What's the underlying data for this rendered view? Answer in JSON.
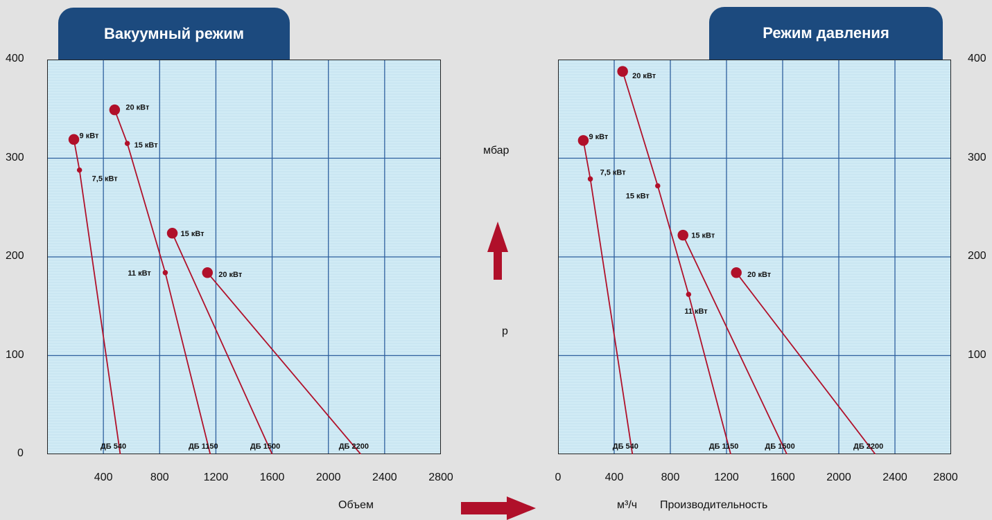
{
  "header": {
    "left_title": "Вакуумный режим",
    "right_title": "Режим давления"
  },
  "axis": {
    "y_unit": "мбар",
    "y_symbol": "p",
    "x_label_left": "Объем",
    "x_unit": "м³/ч",
    "x_label_right": "Производительность",
    "y_ticks": [
      "0",
      "100",
      "200",
      "300",
      "400"
    ],
    "y_ticks_right": [
      "100",
      "200",
      "300",
      "400"
    ],
    "x_ticks_left": [
      "400",
      "800",
      "1200",
      "1600",
      "2000",
      "2400",
      "2800"
    ],
    "x_ticks_right": [
      "0",
      "400",
      "800",
      "1200",
      "1600",
      "2000",
      "2400",
      "2800"
    ]
  },
  "colors": {
    "plot_bg": "#d1ebf5",
    "grid": "#2e5f9e",
    "curve": "#b0102a",
    "tab": "#1c4a7e",
    "arrow": "#b0102a"
  },
  "chart_data": [
    {
      "type": "line",
      "title": "Вакуумный режим",
      "xlim": [
        0,
        2800
      ],
      "ylim": [
        0,
        400
      ],
      "grid": true,
      "series": [
        {
          "name": "ДБ 540",
          "points": [
            [
              190,
              319
            ],
            [
              230,
              288
            ],
            [
              520,
              0
            ]
          ],
          "point_labels": [
            "9 кВт",
            "7,5 кВт",
            ""
          ],
          "point_size": [
            10,
            6,
            0
          ],
          "end_label": "ДБ 540",
          "label_dx": [
            8,
            18
          ],
          "label_dy": [
            -2,
            16
          ]
        },
        {
          "name": "ДБ 1150",
          "points": [
            [
              480,
              349
            ],
            [
              570,
              315
            ],
            [
              840,
              184
            ],
            [
              1160,
              0
            ]
          ],
          "point_labels": [
            "20 кВт",
            "15 кВт",
            "11 кВт",
            ""
          ],
          "point_size": [
            10,
            6,
            6,
            0
          ],
          "end_label": "ДБ 1150",
          "label_dx": [
            16,
            10,
            -54
          ],
          "label_dy": [
            0,
            6,
            4
          ]
        },
        {
          "name": "ДБ 1500",
          "points": [
            [
              890,
              224
            ],
            [
              1600,
              0
            ]
          ],
          "point_labels": [
            "15 кВт",
            ""
          ],
          "point_size": [
            10,
            0
          ],
          "end_label": "ДБ 1500",
          "label_dx": [
            12
          ],
          "label_dy": [
            4
          ]
        },
        {
          "name": "ДБ 2200",
          "points": [
            [
              1140,
              184
            ],
            [
              2230,
              0
            ]
          ],
          "point_labels": [
            "20 кВт",
            ""
          ],
          "point_size": [
            10,
            0
          ],
          "end_label": "ДБ 2200",
          "label_dx": [
            16
          ],
          "label_dy": [
            6
          ]
        }
      ]
    },
    {
      "type": "line",
      "title": "Режим давления",
      "xlim": [
        0,
        2800
      ],
      "ylim": [
        0,
        400
      ],
      "grid": true,
      "series": [
        {
          "name": "ДБ 540",
          "points": [
            [
              180,
              318
            ],
            [
              230,
              279
            ],
            [
              530,
              0
            ]
          ],
          "point_labels": [
            "9 кВт",
            "7,5 кВт",
            ""
          ],
          "point_size": [
            10,
            6,
            0
          ],
          "end_label": "ДБ 540",
          "label_dx": [
            8,
            14
          ],
          "label_dy": [
            -2,
            -6
          ]
        },
        {
          "name": "ДБ 1150",
          "points": [
            [
              460,
              388
            ],
            [
              710,
              272
            ],
            [
              930,
              162
            ],
            [
              1230,
              0
            ]
          ],
          "point_labels": [
            "20 кВт",
            "15 кВт",
            "11 кВт",
            ""
          ],
          "point_size": [
            10,
            6,
            6,
            0
          ],
          "end_label": "ДБ 1150",
          "label_dx": [
            14,
            -46,
            -6
          ],
          "label_dy": [
            10,
            18,
            28
          ]
        },
        {
          "name": "ДБ 1500",
          "points": [
            [
              890,
              222
            ],
            [
              1630,
              0
            ]
          ],
          "point_labels": [
            "15 кВт",
            ""
          ],
          "point_size": [
            10,
            0
          ],
          "end_label": "ДБ 1500",
          "label_dx": [
            12
          ],
          "label_dy": [
            4
          ]
        },
        {
          "name": "ДБ 2200",
          "points": [
            [
              1270,
              184
            ],
            [
              2260,
              0
            ]
          ],
          "point_labels": [
            "20 кВт",
            ""
          ],
          "point_size": [
            10,
            0
          ],
          "end_label": "ДБ 2200",
          "label_dx": [
            16
          ],
          "label_dy": [
            6
          ]
        }
      ]
    }
  ]
}
